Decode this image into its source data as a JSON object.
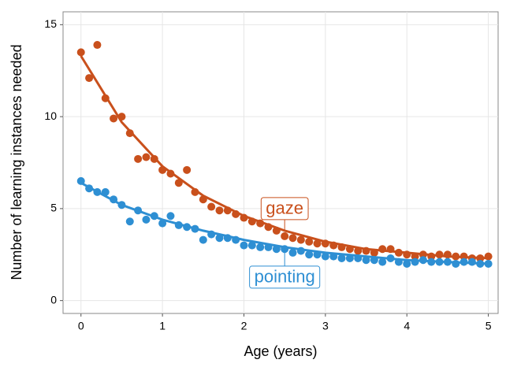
{
  "chart_data": {
    "type": "scatter",
    "xlabel": "Age (years)",
    "ylabel": "Number of learning instances needed",
    "x": [
      0,
      0.1,
      0.2,
      0.3,
      0.4,
      0.5,
      0.6,
      0.7,
      0.8,
      0.9,
      1,
      1.1,
      1.2,
      1.3,
      1.4,
      1.5,
      1.6,
      1.7,
      1.8,
      1.9,
      2,
      2.1,
      2.2,
      2.3,
      2.4,
      2.5,
      2.6,
      2.7,
      2.8,
      2.9,
      3,
      3.1,
      3.2,
      3.3,
      3.4,
      3.5,
      3.6,
      3.7,
      3.8,
      3.9,
      4,
      4.1,
      4.2,
      4.3,
      4.4,
      4.5,
      4.6,
      4.7,
      4.8,
      4.9,
      5
    ],
    "fit_x": [
      0,
      0.5,
      1,
      1.5,
      2,
      2.5,
      3,
      3.5,
      4,
      4.5,
      5
    ],
    "series": [
      {
        "name": "gaze",
        "color": "#c9501c",
        "values": [
          13.5,
          12.1,
          13.9,
          11.0,
          9.9,
          10.0,
          9.1,
          7.7,
          7.8,
          7.7,
          7.1,
          6.9,
          6.4,
          7.1,
          5.9,
          5.5,
          5.1,
          4.9,
          4.9,
          4.7,
          4.5,
          4.3,
          4.2,
          4.0,
          3.8,
          3.5,
          3.4,
          3.3,
          3.2,
          3.1,
          3.1,
          3.0,
          2.9,
          2.8,
          2.7,
          2.7,
          2.6,
          2.8,
          2.8,
          2.6,
          2.5,
          2.4,
          2.5,
          2.4,
          2.5,
          2.5,
          2.4,
          2.4,
          2.3,
          2.3,
          2.4
        ],
        "fit": [
          13.3,
          9.7,
          7.3,
          5.7,
          4.6,
          3.8,
          3.2,
          2.8,
          2.6,
          2.4,
          2.3
        ]
      },
      {
        "name": "pointing",
        "color": "#2e8fd3",
        "values": [
          6.5,
          6.1,
          5.9,
          5.9,
          5.5,
          5.2,
          4.3,
          4.9,
          4.4,
          4.6,
          4.2,
          4.6,
          4.1,
          4.0,
          3.9,
          3.3,
          3.6,
          3.4,
          3.4,
          3.3,
          3.0,
          3.0,
          2.9,
          2.9,
          2.8,
          2.8,
          2.6,
          2.7,
          2.5,
          2.5,
          2.4,
          2.4,
          2.3,
          2.3,
          2.3,
          2.2,
          2.2,
          2.1,
          2.3,
          2.1,
          2.0,
          2.1,
          2.2,
          2.1,
          2.1,
          2.1,
          2.0,
          2.1,
          2.1,
          2.0,
          2.0
        ],
        "fit": [
          6.4,
          5.2,
          4.4,
          3.8,
          3.3,
          2.9,
          2.6,
          2.4,
          2.2,
          2.1,
          2.0
        ]
      }
    ],
    "xlim": [
      -0.22,
      5.12
    ],
    "ylim": [
      -0.7,
      15.7
    ],
    "xticks": [
      0,
      1,
      2,
      3,
      4,
      5
    ],
    "yticks": [
      0,
      5,
      10,
      15
    ],
    "grid": true
  }
}
